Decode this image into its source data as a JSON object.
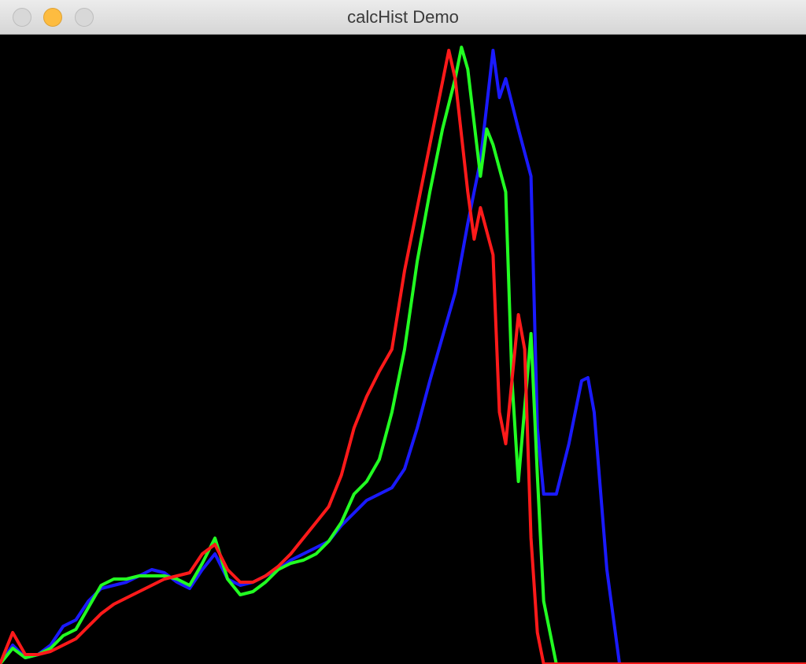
{
  "window": {
    "title": "calcHist Demo",
    "buttons": {
      "close": "close-button",
      "minimize": "minimize-button",
      "zoom": "zoom-button"
    }
  },
  "colors": {
    "background": "#000000",
    "blue": "#1a1aff",
    "green": "#22ff22",
    "red": "#ff1a1a"
  },
  "chart_data": {
    "type": "line",
    "title": "",
    "xlabel": "",
    "ylabel": "",
    "xlim": [
      0,
      255
    ],
    "ylim": [
      0,
      400
    ],
    "grid": false,
    "series": [
      {
        "color": "blue",
        "points": [
          [
            0,
            0
          ],
          [
            4,
            12
          ],
          [
            8,
            4
          ],
          [
            12,
            6
          ],
          [
            16,
            12
          ],
          [
            20,
            24
          ],
          [
            24,
            28
          ],
          [
            28,
            40
          ],
          [
            32,
            48
          ],
          [
            36,
            50
          ],
          [
            40,
            52
          ],
          [
            44,
            56
          ],
          [
            48,
            60
          ],
          [
            52,
            58
          ],
          [
            56,
            52
          ],
          [
            60,
            48
          ],
          [
            64,
            60
          ],
          [
            68,
            70
          ],
          [
            72,
            54
          ],
          [
            76,
            50
          ],
          [
            80,
            52
          ],
          [
            84,
            56
          ],
          [
            88,
            60
          ],
          [
            92,
            66
          ],
          [
            96,
            70
          ],
          [
            100,
            74
          ],
          [
            104,
            78
          ],
          [
            108,
            88
          ],
          [
            112,
            96
          ],
          [
            116,
            104
          ],
          [
            120,
            108
          ],
          [
            124,
            112
          ],
          [
            128,
            124
          ],
          [
            132,
            150
          ],
          [
            136,
            180
          ],
          [
            140,
            208
          ],
          [
            144,
            236
          ],
          [
            148,
            280
          ],
          [
            152,
            320
          ],
          [
            156,
            390
          ],
          [
            158,
            360
          ],
          [
            160,
            372
          ],
          [
            164,
            340
          ],
          [
            168,
            310
          ],
          [
            170,
            150
          ],
          [
            172,
            108
          ],
          [
            176,
            108
          ],
          [
            180,
            140
          ],
          [
            184,
            180
          ],
          [
            186,
            182
          ],
          [
            188,
            160
          ],
          [
            192,
            60
          ],
          [
            196,
            0
          ],
          [
            200,
            0
          ],
          [
            255,
            0
          ]
        ]
      },
      {
        "color": "green",
        "points": [
          [
            0,
            0
          ],
          [
            4,
            10
          ],
          [
            8,
            4
          ],
          [
            12,
            6
          ],
          [
            16,
            10
          ],
          [
            20,
            18
          ],
          [
            24,
            22
          ],
          [
            28,
            36
          ],
          [
            32,
            50
          ],
          [
            36,
            54
          ],
          [
            40,
            54
          ],
          [
            44,
            56
          ],
          [
            48,
            56
          ],
          [
            52,
            56
          ],
          [
            56,
            54
          ],
          [
            60,
            50
          ],
          [
            64,
            64
          ],
          [
            68,
            80
          ],
          [
            72,
            54
          ],
          [
            76,
            44
          ],
          [
            80,
            46
          ],
          [
            84,
            52
          ],
          [
            88,
            60
          ],
          [
            92,
            64
          ],
          [
            96,
            66
          ],
          [
            100,
            70
          ],
          [
            104,
            78
          ],
          [
            108,
            90
          ],
          [
            112,
            108
          ],
          [
            116,
            116
          ],
          [
            120,
            130
          ],
          [
            124,
            160
          ],
          [
            128,
            200
          ],
          [
            132,
            256
          ],
          [
            136,
            300
          ],
          [
            140,
            340
          ],
          [
            144,
            372
          ],
          [
            146,
            392
          ],
          [
            148,
            378
          ],
          [
            152,
            310
          ],
          [
            154,
            340
          ],
          [
            156,
            330
          ],
          [
            160,
            300
          ],
          [
            162,
            180
          ],
          [
            164,
            116
          ],
          [
            168,
            210
          ],
          [
            170,
            120
          ],
          [
            172,
            40
          ],
          [
            176,
            0
          ],
          [
            180,
            0
          ],
          [
            255,
            0
          ]
        ]
      },
      {
        "color": "red",
        "points": [
          [
            0,
            0
          ],
          [
            4,
            20
          ],
          [
            8,
            6
          ],
          [
            12,
            6
          ],
          [
            16,
            8
          ],
          [
            20,
            12
          ],
          [
            24,
            16
          ],
          [
            28,
            24
          ],
          [
            32,
            32
          ],
          [
            36,
            38
          ],
          [
            40,
            42
          ],
          [
            44,
            46
          ],
          [
            48,
            50
          ],
          [
            52,
            54
          ],
          [
            56,
            56
          ],
          [
            60,
            58
          ],
          [
            64,
            70
          ],
          [
            68,
            76
          ],
          [
            72,
            60
          ],
          [
            76,
            52
          ],
          [
            80,
            52
          ],
          [
            84,
            56
          ],
          [
            88,
            62
          ],
          [
            92,
            70
          ],
          [
            96,
            80
          ],
          [
            100,
            90
          ],
          [
            104,
            100
          ],
          [
            108,
            120
          ],
          [
            112,
            150
          ],
          [
            116,
            170
          ],
          [
            120,
            186
          ],
          [
            124,
            200
          ],
          [
            128,
            250
          ],
          [
            132,
            290
          ],
          [
            136,
            330
          ],
          [
            140,
            370
          ],
          [
            142,
            390
          ],
          [
            144,
            372
          ],
          [
            148,
            300
          ],
          [
            150,
            270
          ],
          [
            152,
            290
          ],
          [
            156,
            260
          ],
          [
            158,
            160
          ],
          [
            160,
            140
          ],
          [
            164,
            222
          ],
          [
            166,
            200
          ],
          [
            168,
            80
          ],
          [
            170,
            20
          ],
          [
            172,
            0
          ],
          [
            176,
            0
          ],
          [
            255,
            0
          ]
        ]
      }
    ]
  }
}
